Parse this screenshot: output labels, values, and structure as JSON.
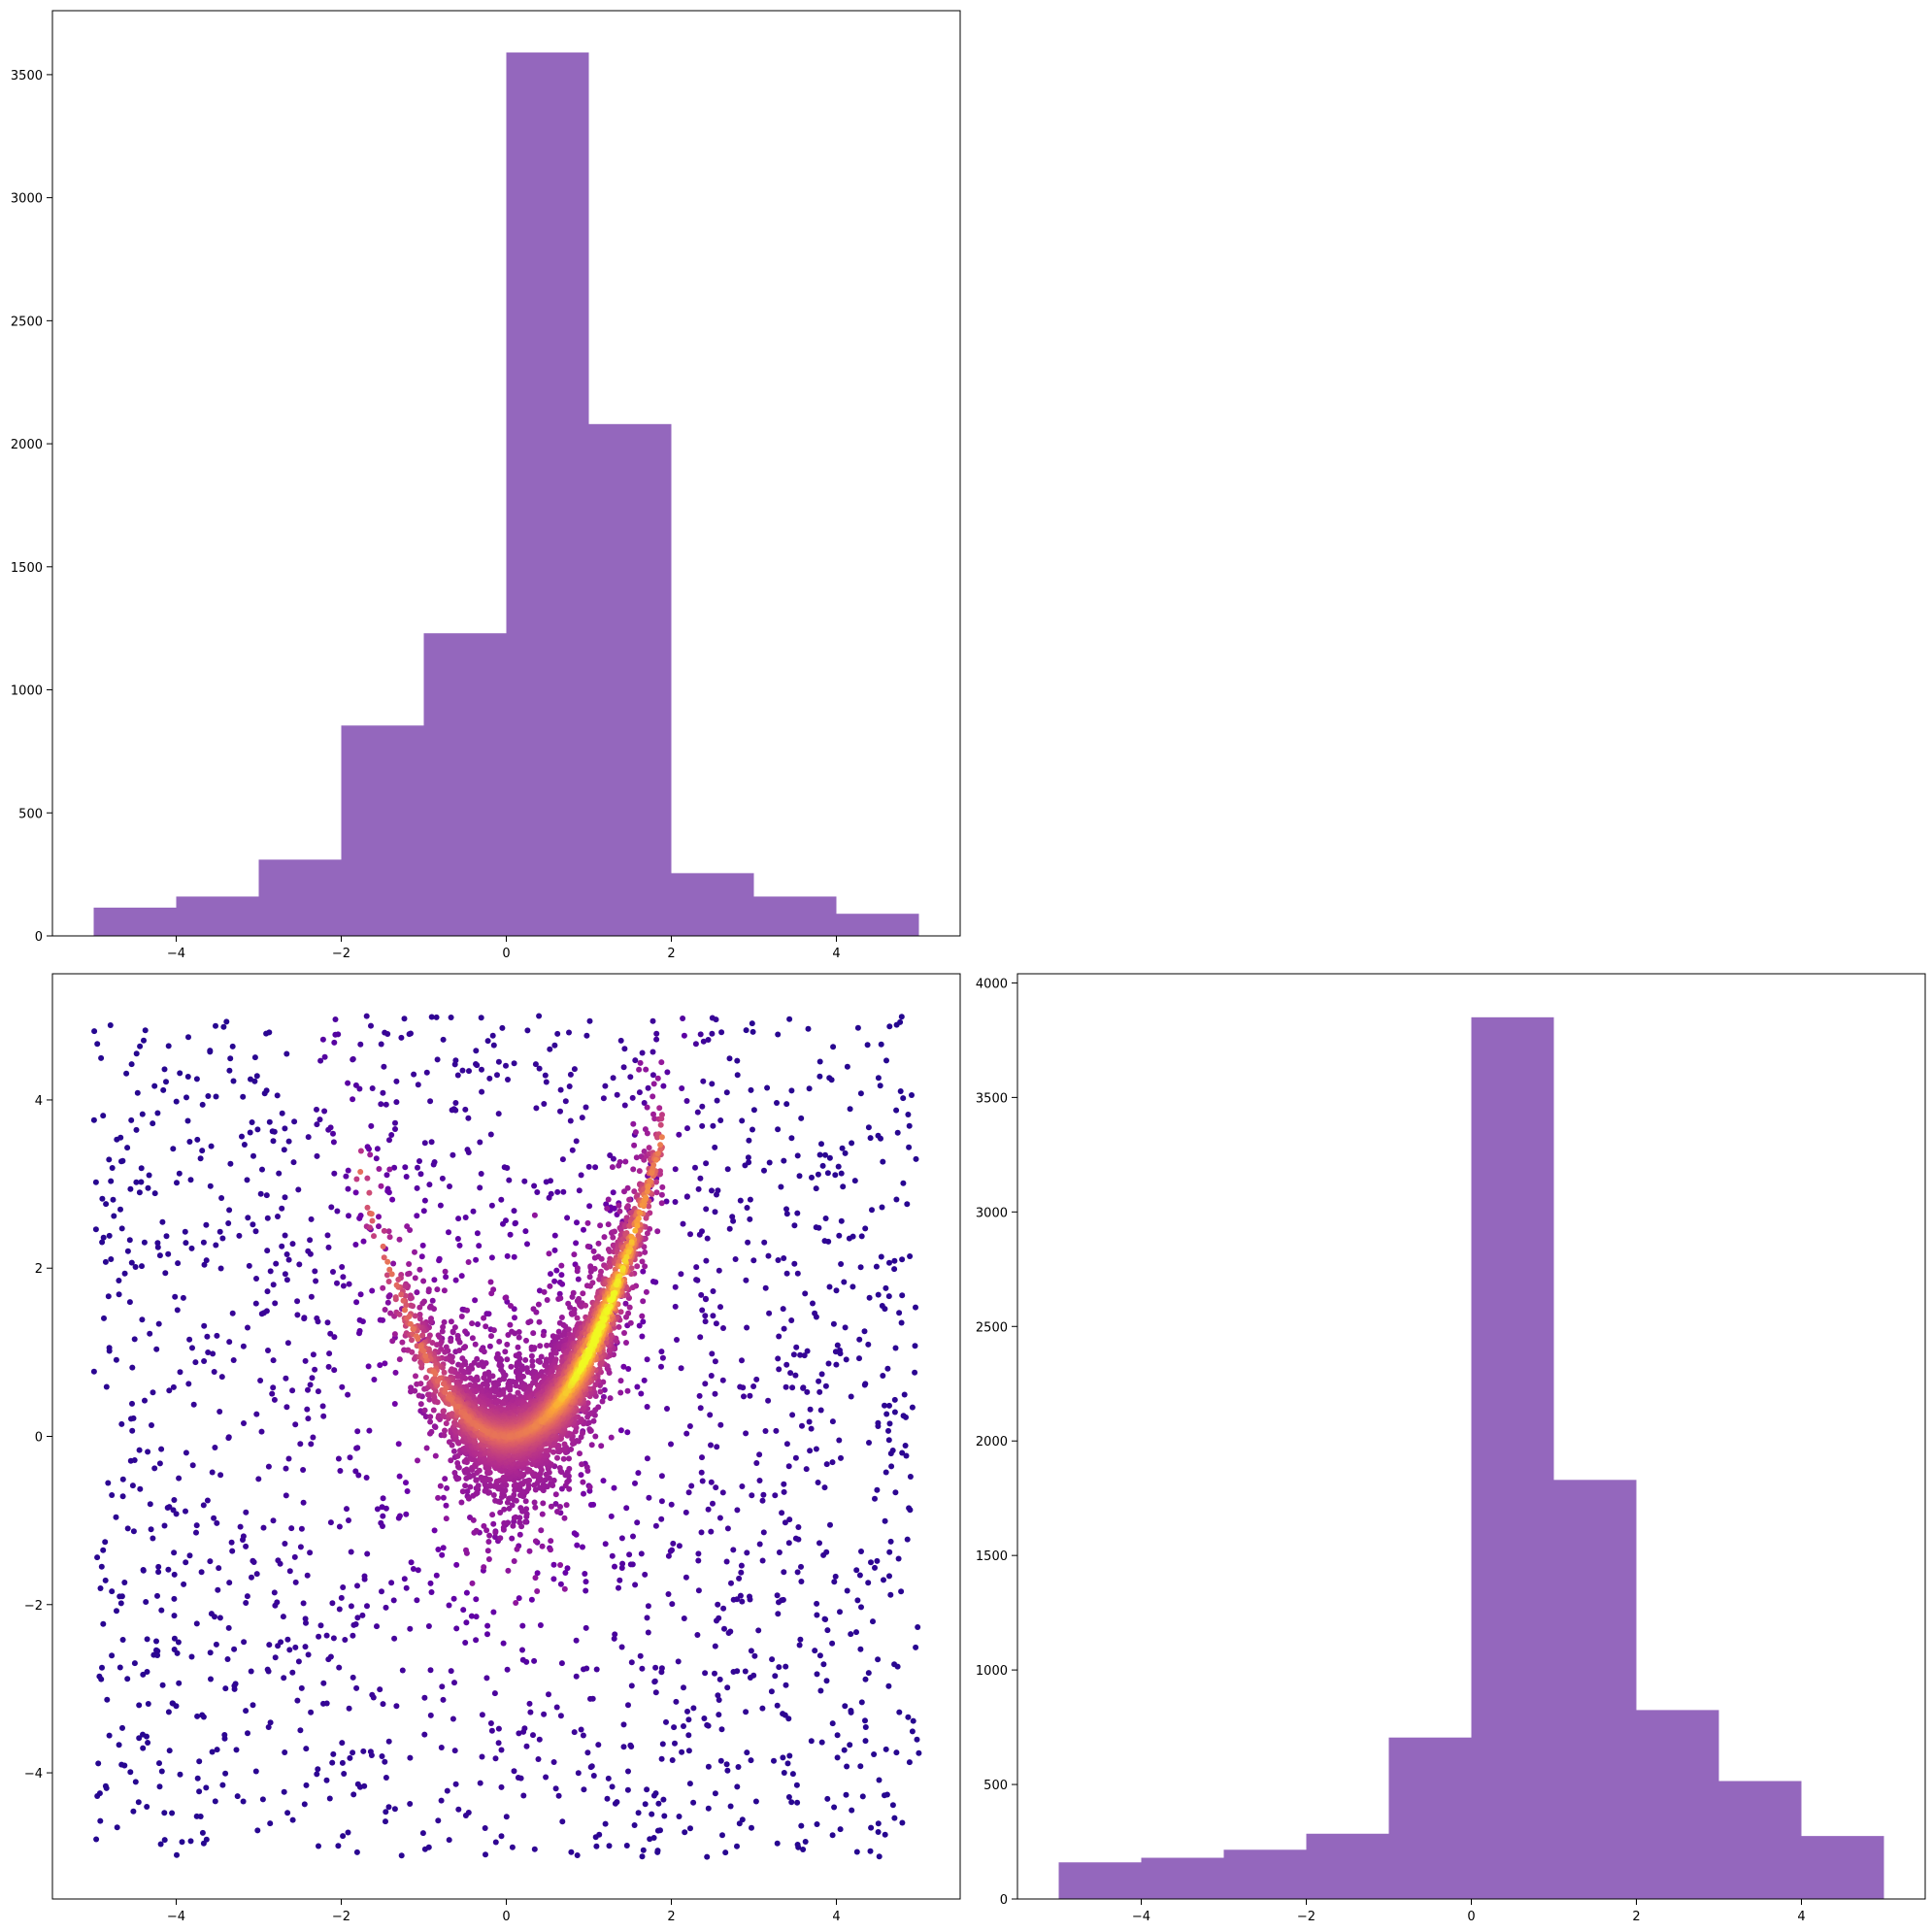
{
  "chart_data": [
    {
      "id": "hist-x",
      "type": "bar",
      "subtype": "histogram",
      "bin_edges": [
        -5,
        -4,
        -3,
        -2,
        -1,
        0,
        1,
        2,
        3,
        4,
        5
      ],
      "values": [
        115,
        160,
        310,
        855,
        1230,
        3590,
        2080,
        255,
        160,
        90
      ],
      "xlim": [
        -5.5,
        5.5
      ],
      "ylim": [
        0,
        3760
      ],
      "xticks": [
        -4,
        -2,
        0,
        2,
        4
      ],
      "xtick_labels": [
        "−4",
        "−2",
        "0",
        "2",
        "4"
      ],
      "yticks": [
        0,
        500,
        1000,
        1500,
        2000,
        2500,
        3000,
        3500
      ],
      "ytick_labels": [
        "0",
        "500",
        "1000",
        "1500",
        "2000",
        "2500",
        "3000",
        "3500"
      ],
      "color": "#9467bd",
      "grid": false
    },
    {
      "id": "scatter-xy",
      "type": "scatter",
      "description_of_density": "points colored by local density (plasma colormap)",
      "n_uniform": 1900,
      "n_banana": 4200,
      "x_range": [
        -5,
        5
      ],
      "y_range": [
        -5,
        5
      ],
      "curve": "y ≈ x^2 + noise, x concentrated near 0–1.8",
      "xlim": [
        -5.5,
        5.5
      ],
      "ylim": [
        -5.5,
        5.5
      ],
      "xticks": [
        -4,
        -2,
        0,
        2,
        4
      ],
      "xtick_labels": [
        "−4",
        "−2",
        "0",
        "2",
        "4"
      ],
      "yticks": [
        -4,
        -2,
        0,
        2,
        4
      ],
      "ytick_labels": [
        "−4",
        "−2",
        "0",
        "2",
        "4"
      ],
      "colormap": [
        "#0d0887",
        "#6a00a8",
        "#b12a90",
        "#e16462",
        "#fca636",
        "#f0f921"
      ],
      "grid": false
    },
    {
      "id": "hist-y",
      "type": "bar",
      "subtype": "histogram",
      "bin_edges": [
        -5,
        -4,
        -3,
        -2,
        -1,
        0,
        1,
        2,
        3,
        4,
        5
      ],
      "values": [
        160,
        180,
        215,
        285,
        705,
        3850,
        1830,
        825,
        515,
        275
      ],
      "xlim": [
        -5.5,
        5.5
      ],
      "ylim": [
        0,
        4040
      ],
      "xticks": [
        -4,
        -2,
        0,
        2,
        4
      ],
      "xtick_labels": [
        "−4",
        "−2",
        "0",
        "2",
        "4"
      ],
      "yticks": [
        0,
        500,
        1000,
        1500,
        2000,
        2500,
        3000,
        3500,
        4000
      ],
      "ytick_labels": [
        "0",
        "500",
        "1000",
        "1500",
        "2000",
        "2500",
        "3000",
        "3500",
        "4000"
      ],
      "color": "#9467bd",
      "grid": false
    }
  ]
}
